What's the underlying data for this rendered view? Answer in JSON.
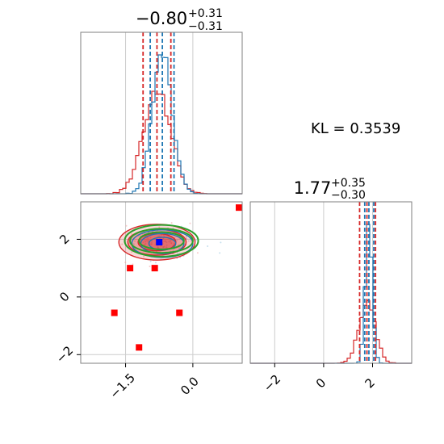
{
  "chart_data": [
    {
      "type": "histogram",
      "parameter": 1,
      "title": {
        "median": "−0.80",
        "upper": "+0.31",
        "lower": "−0.31"
      },
      "xlim": [
        -2.5,
        1.1
      ],
      "grid": true,
      "series": [
        {
          "color": "#d62728",
          "median": -0.8,
          "lower": -1.11,
          "upper": -0.49,
          "mean": -0.8,
          "sd": 0.31
        },
        {
          "color": "#1f77b4",
          "median": -0.68,
          "lower": -0.95,
          "upper": -0.42,
          "mean": -0.68,
          "sd": 0.22
        }
      ]
    },
    {
      "type": "scatter",
      "parameters": [
        1,
        2
      ],
      "xlim": [
        -2.5,
        1.1
      ],
      "ylim": [
        -2.3,
        3.3
      ],
      "grid": true,
      "x_ticks": [
        "−1.5",
        "0.0"
      ],
      "x_tick_values": [
        -1.5,
        0.0
      ],
      "y_ticks": [
        "−2",
        "0",
        "2"
      ],
      "y_tick_values": [
        -2,
        0,
        2
      ],
      "markers": [
        {
          "x": -1.4,
          "y": 1.0,
          "color": "#ff0000"
        },
        {
          "x": -0.85,
          "y": 1.0,
          "color": "#ff0000"
        },
        {
          "x": -1.75,
          "y": -0.55,
          "color": "#ff0000"
        },
        {
          "x": -0.3,
          "y": -0.55,
          "color": "#ff0000"
        },
        {
          "x": -1.2,
          "y": -1.75,
          "color": "#ff0000"
        },
        {
          "x": 1.1,
          "y": 3.1,
          "color": "#ff0000"
        },
        {
          "x": -0.75,
          "y": 1.9,
          "color": "#0000ff"
        }
      ],
      "contours": [
        {
          "color": "#d62728",
          "center": [
            -0.8,
            1.9
          ],
          "radii": [
            [
              0.42,
              0.3
            ],
            [
              0.65,
              0.45
            ],
            [
              0.85,
              0.62
            ]
          ]
        },
        {
          "color": "#1f77b4",
          "center": [
            -0.68,
            1.85
          ],
          "radii": [
            [
              0.3,
              0.22
            ],
            [
              0.48,
              0.35
            ],
            [
              0.68,
              0.48
            ]
          ]
        },
        {
          "color": "#2ca02c",
          "center": [
            -0.7,
            1.95
          ],
          "radii": [
            [
              0.5,
              0.3
            ],
            [
              0.7,
              0.42
            ],
            [
              0.82,
              0.55
            ]
          ]
        }
      ]
    },
    {
      "type": "histogram",
      "parameter": 2,
      "title": {
        "median": "1.77",
        "upper": "+0.35",
        "lower": "−0.30"
      },
      "xlim": [
        -3.0,
        3.6
      ],
      "grid": true,
      "x_ticks": [
        "−2",
        "0",
        "2"
      ],
      "x_tick_values": [
        -2,
        0,
        2
      ],
      "series": [
        {
          "color": "#d62728",
          "median": 1.77,
          "lower": 1.47,
          "upper": 2.12,
          "mean": 1.77,
          "sd": 0.33
        },
        {
          "color": "#1f77b4",
          "median": 1.85,
          "lower": 1.68,
          "upper": 2.05,
          "mean": 1.85,
          "sd": 0.14
        }
      ]
    }
  ],
  "annotation": {
    "text": "KL = 0.3539"
  }
}
